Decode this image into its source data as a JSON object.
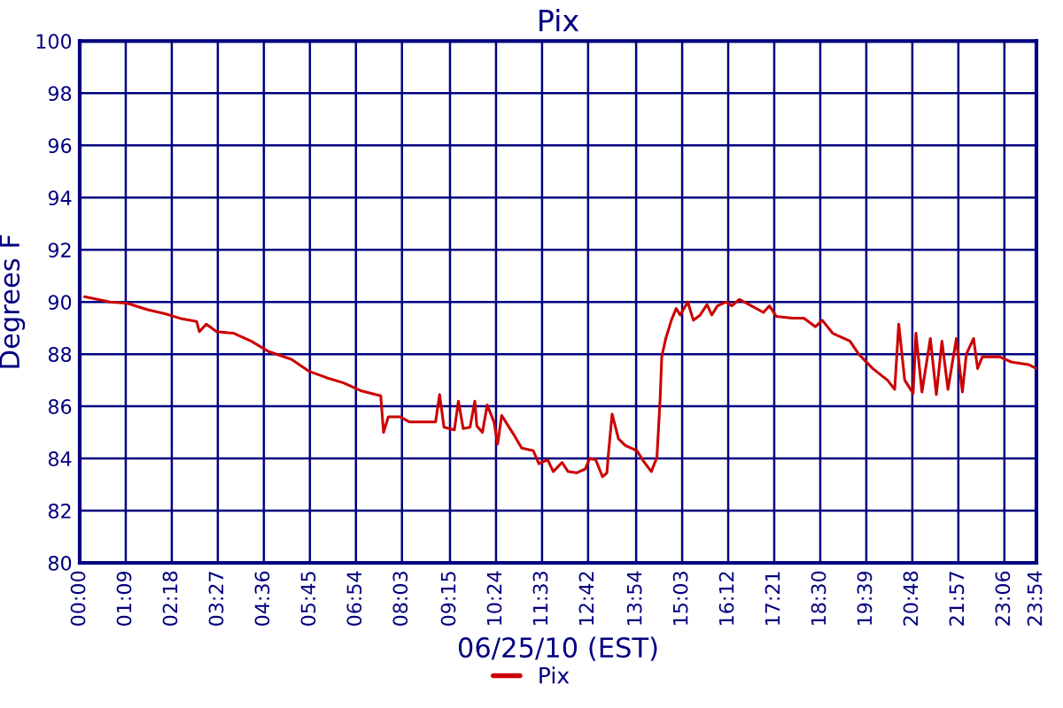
{
  "chart_data": {
    "type": "line",
    "title": "Pix",
    "xlabel": "06/25/10 (EST)",
    "ylabel": "Degrees F",
    "xlim": [
      0,
      23.9
    ],
    "ylim": [
      80,
      100
    ],
    "xticks": [
      {
        "value": 0,
        "label": "00:00"
      },
      {
        "value": 1.15,
        "label": "01:09"
      },
      {
        "value": 2.3,
        "label": "02:18"
      },
      {
        "value": 3.45,
        "label": "03:27"
      },
      {
        "value": 4.6,
        "label": "04:36"
      },
      {
        "value": 5.75,
        "label": "05:45"
      },
      {
        "value": 6.9,
        "label": "06:54"
      },
      {
        "value": 8.05,
        "label": "08:03"
      },
      {
        "value": 9.25,
        "label": "09:15"
      },
      {
        "value": 10.4,
        "label": "10:24"
      },
      {
        "value": 11.55,
        "label": "11:33"
      },
      {
        "value": 12.7,
        "label": "12:42"
      },
      {
        "value": 13.9,
        "label": "13:54"
      },
      {
        "value": 15.05,
        "label": "15:03"
      },
      {
        "value": 16.2,
        "label": "16:12"
      },
      {
        "value": 17.35,
        "label": "17:21"
      },
      {
        "value": 18.5,
        "label": "18:30"
      },
      {
        "value": 19.65,
        "label": "19:39"
      },
      {
        "value": 20.8,
        "label": "20:48"
      },
      {
        "value": 21.95,
        "label": "21:57"
      },
      {
        "value": 23.1,
        "label": "23:06"
      },
      {
        "value": 23.9,
        "label": "23:54"
      }
    ],
    "yticks": [
      80,
      82,
      84,
      86,
      88,
      90,
      92,
      94,
      96,
      98,
      100
    ],
    "grid": true,
    "legend": "bottom",
    "marker": "none",
    "line_style": "solid",
    "series": [
      {
        "name": "Pix",
        "color": "#cc0000",
        "x": [
          0.12,
          0.76,
          1.19,
          1.7,
          2.13,
          2.56,
          2.92,
          2.99,
          3.16,
          3.42,
          3.85,
          4.28,
          4.72,
          5.29,
          5.72,
          6.16,
          6.59,
          7.02,
          7.52,
          7.59,
          7.71,
          8.0,
          8.24,
          8.89,
          8.99,
          9.1,
          9.36,
          9.46,
          9.58,
          9.75,
          9.87,
          9.92,
          10.06,
          10.18,
          10.35,
          10.44,
          10.54,
          10.83,
          11.04,
          11.33,
          11.47,
          11.69,
          11.83,
          12.05,
          12.2,
          12.41,
          12.63,
          12.74,
          12.89,
          13.06,
          13.17,
          13.2,
          13.3,
          13.46,
          13.63,
          13.92,
          14.06,
          14.28,
          14.42,
          14.5,
          14.54,
          14.64,
          14.78,
          14.9,
          15.0,
          15.19,
          15.33,
          15.5,
          15.67,
          15.79,
          15.93,
          16.15,
          16.29,
          16.48,
          16.72,
          17.08,
          17.23,
          17.4,
          17.8,
          18.09,
          18.38,
          18.55,
          18.81,
          19.24,
          19.46,
          19.81,
          20.18,
          20.36,
          20.46,
          20.61,
          20.82,
          20.89,
          21.04,
          21.25,
          21.4,
          21.54,
          21.69,
          21.9,
          22.05,
          22.15,
          22.33,
          22.43,
          22.55,
          22.98,
          23.27,
          23.7,
          23.9
        ],
        "values": [
          90.2,
          90.0,
          89.95,
          89.7,
          89.55,
          89.35,
          89.25,
          88.86,
          89.15,
          88.86,
          88.8,
          88.5,
          88.1,
          87.8,
          87.35,
          87.1,
          86.9,
          86.6,
          86.4,
          85.0,
          85.6,
          85.6,
          85.4,
          85.4,
          86.45,
          85.2,
          85.1,
          86.2,
          85.15,
          85.2,
          86.2,
          85.25,
          85.0,
          86.05,
          85.4,
          84.55,
          85.65,
          84.95,
          84.4,
          84.3,
          83.8,
          83.95,
          83.5,
          83.85,
          83.5,
          83.45,
          83.6,
          84.0,
          83.95,
          83.3,
          83.45,
          84.05,
          85.7,
          84.75,
          84.5,
          84.3,
          83.95,
          83.5,
          84.05,
          86.3,
          87.9,
          88.6,
          89.3,
          89.75,
          89.5,
          90.0,
          89.3,
          89.5,
          89.9,
          89.5,
          89.85,
          90.0,
          89.85,
          90.1,
          89.9,
          89.6,
          89.85,
          89.45,
          89.38,
          89.38,
          89.05,
          89.3,
          88.8,
          88.5,
          88.0,
          87.45,
          87.0,
          86.65,
          89.15,
          87.0,
          86.5,
          88.8,
          86.55,
          88.6,
          86.45,
          88.5,
          86.65,
          88.6,
          86.55,
          88.0,
          88.6,
          87.45,
          87.9,
          87.9,
          87.7,
          87.6,
          87.45
        ]
      }
    ]
  }
}
